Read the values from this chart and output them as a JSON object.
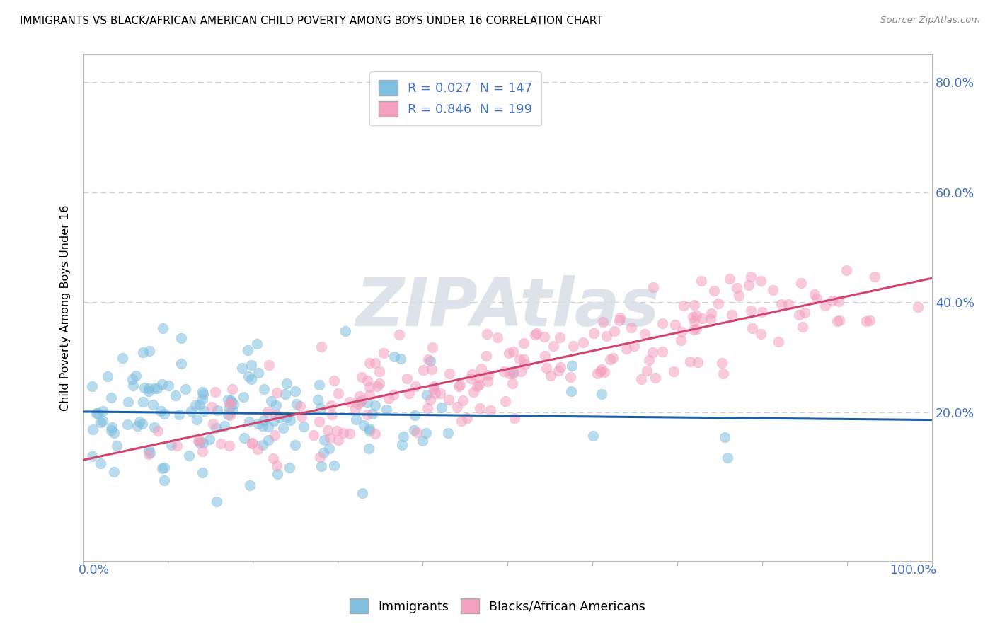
{
  "title": "IMMIGRANTS VS BLACK/AFRICAN AMERICAN CHILD POVERTY AMONG BOYS UNDER 16 CORRELATION CHART",
  "source": "Source: ZipAtlas.com",
  "ylabel": "Child Poverty Among Boys Under 16",
  "ytick_positions": [
    0.0,
    0.2,
    0.4,
    0.6,
    0.8
  ],
  "ytick_labels": [
    "",
    "20.0%",
    "40.0%",
    "60.0%",
    "80.0%"
  ],
  "xlim": [
    0.0,
    1.0
  ],
  "ylim": [
    -0.07,
    0.85
  ],
  "blue_color": "#7fbfdf",
  "pink_color": "#f4a0bf",
  "blue_line_color": "#1a5fa8",
  "pink_line_color": "#d4456e",
  "watermark_text": "ZIPAtlas",
  "watermark_color": "#d8dde8",
  "background_color": "#ffffff",
  "title_fontsize": 11,
  "tick_label_color": "#4472c4",
  "grid_color": "#d0d0d0",
  "legend_blue_label": "R = 0.027  N = 147",
  "legend_pink_label": "R = 0.846  N = 199",
  "bottom_legend_blue": "Immigrants",
  "bottom_legend_pink": "Blacks/African Americans",
  "immigrants_N": 147,
  "blacks_N": 199
}
